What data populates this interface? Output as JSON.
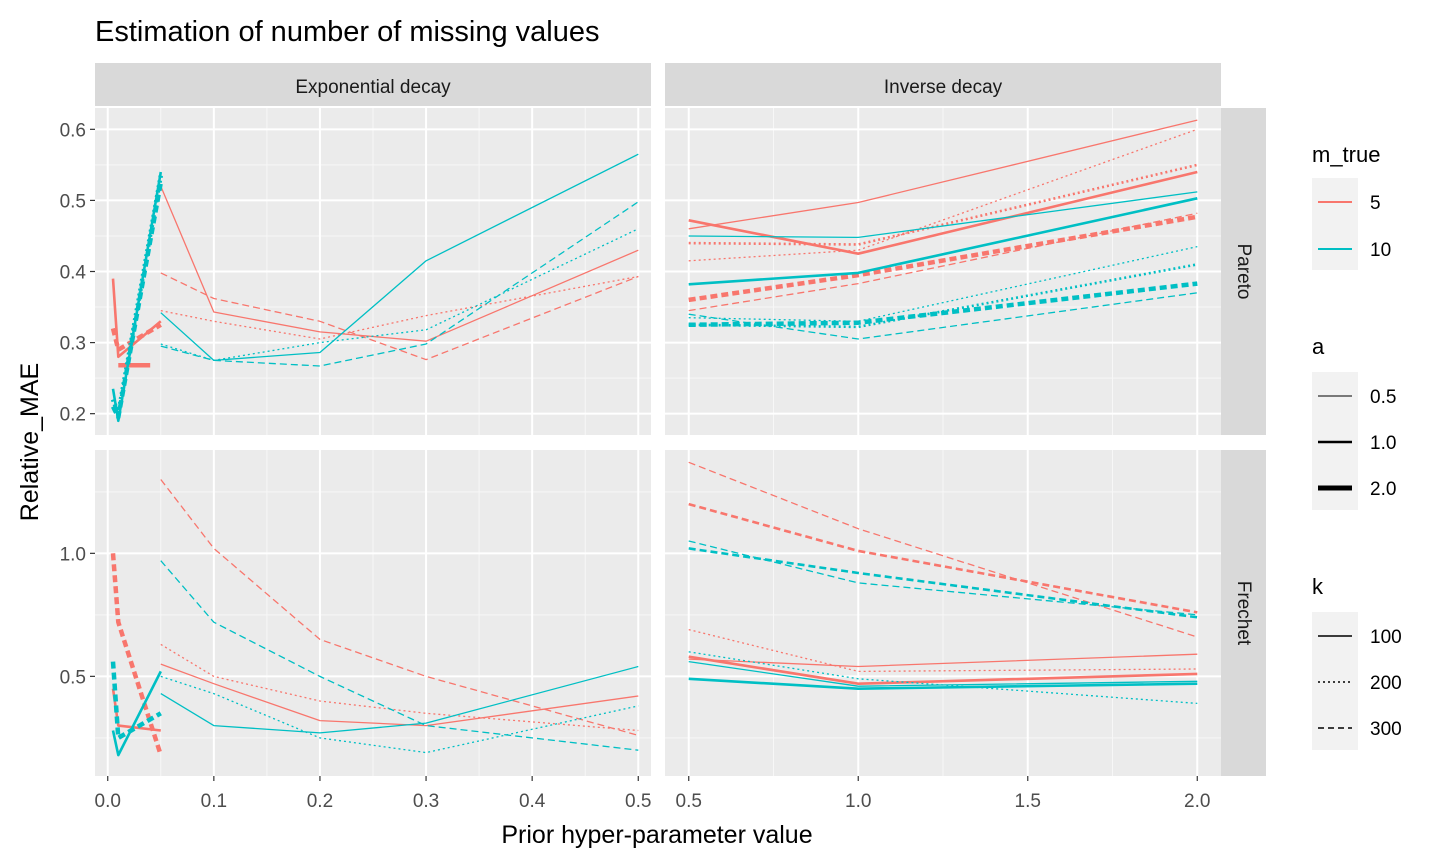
{
  "chart_data": {
    "type": "line",
    "title": "Estimation of number of missing values",
    "xlabel": "Prior hyper-parameter value",
    "ylabel": "Relative_MAE",
    "columns": [
      {
        "label": "Exponential decay",
        "xlim": [
          -0.012,
          0.512
        ],
        "xticks": [
          0.0,
          0.1,
          0.2,
          0.3,
          0.4,
          0.5
        ],
        "xtick_labels": [
          "0.0",
          "0.1",
          "0.2",
          "0.3",
          "0.4",
          "0.5"
        ]
      },
      {
        "label": "Inverse decay",
        "xlim": [
          0.43,
          2.07
        ],
        "xticks": [
          0.5,
          1.0,
          1.5,
          2.0
        ],
        "xtick_labels": [
          "0.5",
          "1.0",
          "1.5",
          "2.0"
        ]
      }
    ],
    "rows": [
      {
        "label": "Pareto",
        "ylim": [
          0.17,
          0.63
        ],
        "yticks": [
          0.2,
          0.3,
          0.4,
          0.5,
          0.6
        ],
        "ytick_labels": [
          "0.2",
          "0.3",
          "0.4",
          "0.5",
          "0.6"
        ]
      },
      {
        "label": "Frechet",
        "ylim": [
          0.095,
          1.42
        ],
        "yticks": [
          0.5,
          1.0
        ],
        "ytick_labels": [
          "0.5",
          "1.0"
        ]
      }
    ],
    "legend": {
      "position": "right",
      "m_true": {
        "title": "m_true",
        "items": [
          {
            "label": "5",
            "color": "#F8766D"
          },
          {
            "label": "10",
            "color": "#00BFC4"
          }
        ]
      },
      "a": {
        "title": "a",
        "items": [
          {
            "label": "0.5",
            "width": 1
          },
          {
            "label": "1.0",
            "width": 2
          },
          {
            "label": "2.0",
            "width": 4
          }
        ]
      },
      "k": {
        "title": "k",
        "items": [
          {
            "label": "100",
            "dash": "solid"
          },
          {
            "label": "200",
            "dash": "dotted"
          },
          {
            "label": "300",
            "dash": "dashed"
          }
        ]
      }
    },
    "grid": true,
    "panels": [
      {
        "row": 0,
        "col": 0,
        "series": [
          {
            "m": 5,
            "a": 0.5,
            "k": 100,
            "x": [
              0.05,
              0.1,
              0.2,
              0.3,
              0.5
            ],
            "y": [
              0.52,
              0.343,
              0.315,
              0.302,
              0.43
            ]
          },
          {
            "m": 5,
            "a": 0.5,
            "k": 200,
            "x": [
              0.05,
              0.1,
              0.2,
              0.3,
              0.5
            ],
            "y": [
              0.345,
              0.33,
              0.305,
              0.338,
              0.393
            ]
          },
          {
            "m": 5,
            "a": 0.5,
            "k": 300,
            "x": [
              0.05,
              0.1,
              0.2,
              0.3,
              0.5
            ],
            "y": [
              0.398,
              0.362,
              0.33,
              0.276,
              0.393
            ]
          },
          {
            "m": 5,
            "a": 1.0,
            "k": 100,
            "x": [
              0.005,
              0.01,
              0.05
            ],
            "y": [
              0.39,
              0.28,
              0.33
            ]
          },
          {
            "m": 5,
            "a": 2.0,
            "k": 100,
            "x": [
              0.01,
              0.04
            ],
            "y": [
              0.268,
              0.268
            ]
          },
          {
            "m": 5,
            "a": 2.0,
            "k": 300,
            "x": [
              0.005,
              0.01,
              0.05
            ],
            "y": [
              0.32,
              0.29,
              0.325
            ]
          },
          {
            "m": 10,
            "a": 0.5,
            "k": 100,
            "x": [
              0.05,
              0.1,
              0.2,
              0.3,
              0.5
            ],
            "y": [
              0.342,
              0.275,
              0.286,
              0.415,
              0.565
            ]
          },
          {
            "m": 10,
            "a": 0.5,
            "k": 200,
            "x": [
              0.05,
              0.1,
              0.2,
              0.3,
              0.5
            ],
            "y": [
              0.298,
              0.275,
              0.3,
              0.318,
              0.46
            ]
          },
          {
            "m": 10,
            "a": 0.5,
            "k": 300,
            "x": [
              0.05,
              0.1,
              0.2,
              0.3,
              0.5
            ],
            "y": [
              0.295,
              0.275,
              0.267,
              0.298,
              0.498
            ]
          },
          {
            "m": 10,
            "a": 1.0,
            "k": 100,
            "x": [
              0.005,
              0.01,
              0.05
            ],
            "y": [
              0.235,
              0.19,
              0.54
            ]
          },
          {
            "m": 10,
            "a": 2.0,
            "k": 200,
            "x": [
              0.005,
              0.01,
              0.05
            ],
            "y": [
              0.22,
              0.2,
              0.535
            ]
          },
          {
            "m": 10,
            "a": 2.0,
            "k": 300,
            "x": [
              0.005,
              0.01,
              0.05
            ],
            "y": [
              0.21,
              0.195,
              0.525
            ]
          }
        ]
      },
      {
        "row": 0,
        "col": 1,
        "series": [
          {
            "m": 5,
            "a": 0.5,
            "k": 100,
            "x": [
              0.5,
              1.0,
              2.0
            ],
            "y": [
              0.46,
              0.497,
              0.613
            ]
          },
          {
            "m": 5,
            "a": 0.5,
            "k": 200,
            "x": [
              0.5,
              1.0,
              2.0
            ],
            "y": [
              0.415,
              0.43,
              0.6
            ]
          },
          {
            "m": 5,
            "a": 0.5,
            "k": 300,
            "x": [
              0.5,
              1.0,
              2.0
            ],
            "y": [
              0.345,
              0.383,
              0.482
            ]
          },
          {
            "m": 5,
            "a": 1.0,
            "k": 100,
            "x": [
              0.5,
              1.0,
              2.0
            ],
            "y": [
              0.472,
              0.425,
              0.54
            ]
          },
          {
            "m": 5,
            "a": 1.0,
            "k": 200,
            "x": [
              0.5,
              1.0,
              2.0
            ],
            "y": [
              0.44,
              0.438,
              0.55
            ]
          },
          {
            "m": 5,
            "a": 2.0,
            "k": 300,
            "x": [
              0.5,
              1.0,
              2.0
            ],
            "y": [
              0.36,
              0.395,
              0.477
            ]
          },
          {
            "m": 10,
            "a": 0.5,
            "k": 100,
            "x": [
              0.5,
              1.0,
              2.0
            ],
            "y": [
              0.45,
              0.448,
              0.512
            ]
          },
          {
            "m": 10,
            "a": 0.5,
            "k": 200,
            "x": [
              0.5,
              1.0,
              2.0
            ],
            "y": [
              0.335,
              0.33,
              0.435
            ]
          },
          {
            "m": 10,
            "a": 0.5,
            "k": 300,
            "x": [
              0.5,
              1.0,
              2.0
            ],
            "y": [
              0.34,
              0.305,
              0.37
            ]
          },
          {
            "m": 10,
            "a": 1.0,
            "k": 100,
            "x": [
              0.5,
              1.0,
              2.0
            ],
            "y": [
              0.382,
              0.398,
              0.503
            ]
          },
          {
            "m": 10,
            "a": 1.0,
            "k": 200,
            "x": [
              0.5,
              1.0,
              2.0
            ],
            "y": [
              0.325,
              0.322,
              0.41
            ]
          },
          {
            "m": 10,
            "a": 2.0,
            "k": 300,
            "x": [
              0.5,
              1.0,
              2.0
            ],
            "y": [
              0.325,
              0.328,
              0.383
            ]
          }
        ]
      },
      {
        "row": 1,
        "col": 0,
        "series": [
          {
            "m": 5,
            "a": 0.5,
            "k": 100,
            "x": [
              0.05,
              0.1,
              0.2,
              0.3,
              0.5
            ],
            "y": [
              0.55,
              0.47,
              0.32,
              0.3,
              0.42
            ]
          },
          {
            "m": 5,
            "a": 0.5,
            "k": 200,
            "x": [
              0.05,
              0.1,
              0.2,
              0.3,
              0.5
            ],
            "y": [
              0.63,
              0.5,
              0.4,
              0.35,
              0.28
            ]
          },
          {
            "m": 5,
            "a": 0.5,
            "k": 300,
            "x": [
              0.05,
              0.1,
              0.2,
              0.3,
              0.5
            ],
            "y": [
              1.3,
              1.02,
              0.65,
              0.5,
              0.26
            ]
          },
          {
            "m": 5,
            "a": 1.0,
            "k": 100,
            "x": [
              0.005,
              0.01,
              0.05
            ],
            "y": [
              0.45,
              0.3,
              0.28
            ]
          },
          {
            "m": 5,
            "a": 2.0,
            "k": 300,
            "x": [
              0.005,
              0.01,
              0.05
            ],
            "y": [
              1.0,
              0.72,
              0.18
            ]
          },
          {
            "m": 10,
            "a": 0.5,
            "k": 100,
            "x": [
              0.05,
              0.1,
              0.2,
              0.3,
              0.5
            ],
            "y": [
              0.43,
              0.3,
              0.27,
              0.31,
              0.54
            ]
          },
          {
            "m": 10,
            "a": 0.5,
            "k": 200,
            "x": [
              0.05,
              0.1,
              0.2,
              0.3,
              0.5
            ],
            "y": [
              0.5,
              0.43,
              0.25,
              0.19,
              0.38
            ]
          },
          {
            "m": 10,
            "a": 0.5,
            "k": 300,
            "x": [
              0.05,
              0.1,
              0.2,
              0.3,
              0.5
            ],
            "y": [
              0.97,
              0.72,
              0.5,
              0.3,
              0.2
            ]
          },
          {
            "m": 10,
            "a": 1.0,
            "k": 100,
            "x": [
              0.005,
              0.01,
              0.05
            ],
            "y": [
              0.28,
              0.18,
              0.52
            ]
          },
          {
            "m": 10,
            "a": 2.0,
            "k": 300,
            "x": [
              0.005,
              0.01,
              0.05
            ],
            "y": [
              0.56,
              0.25,
              0.35
            ]
          }
        ]
      },
      {
        "row": 1,
        "col": 1,
        "series": [
          {
            "m": 5,
            "a": 0.5,
            "k": 100,
            "x": [
              0.5,
              1.0,
              2.0
            ],
            "y": [
              0.57,
              0.54,
              0.59
            ]
          },
          {
            "m": 5,
            "a": 0.5,
            "k": 200,
            "x": [
              0.5,
              1.0,
              2.0
            ],
            "y": [
              0.69,
              0.52,
              0.53
            ]
          },
          {
            "m": 5,
            "a": 0.5,
            "k": 300,
            "x": [
              0.5,
              1.0,
              2.0
            ],
            "y": [
              1.37,
              1.1,
              0.66
            ]
          },
          {
            "m": 5,
            "a": 1.0,
            "k": 100,
            "x": [
              0.5,
              1.0,
              2.0
            ],
            "y": [
              0.58,
              0.47,
              0.51
            ]
          },
          {
            "m": 5,
            "a": 1.0,
            "k": 300,
            "x": [
              0.5,
              1.0,
              2.0
            ],
            "y": [
              1.2,
              1.01,
              0.76
            ]
          },
          {
            "m": 10,
            "a": 0.5,
            "k": 100,
            "x": [
              0.5,
              1.0,
              2.0
            ],
            "y": [
              0.56,
              0.46,
              0.48
            ]
          },
          {
            "m": 10,
            "a": 0.5,
            "k": 200,
            "x": [
              0.5,
              1.0,
              2.0
            ],
            "y": [
              0.6,
              0.49,
              0.39
            ]
          },
          {
            "m": 10,
            "a": 0.5,
            "k": 300,
            "x": [
              0.5,
              1.0,
              2.0
            ],
            "y": [
              1.05,
              0.88,
              0.75
            ]
          },
          {
            "m": 10,
            "a": 1.0,
            "k": 100,
            "x": [
              0.5,
              1.0,
              2.0
            ],
            "y": [
              0.49,
              0.45,
              0.47
            ]
          },
          {
            "m": 10,
            "a": 1.0,
            "k": 300,
            "x": [
              0.5,
              1.0,
              2.0
            ],
            "y": [
              1.02,
              0.92,
              0.74
            ]
          }
        ]
      }
    ]
  }
}
